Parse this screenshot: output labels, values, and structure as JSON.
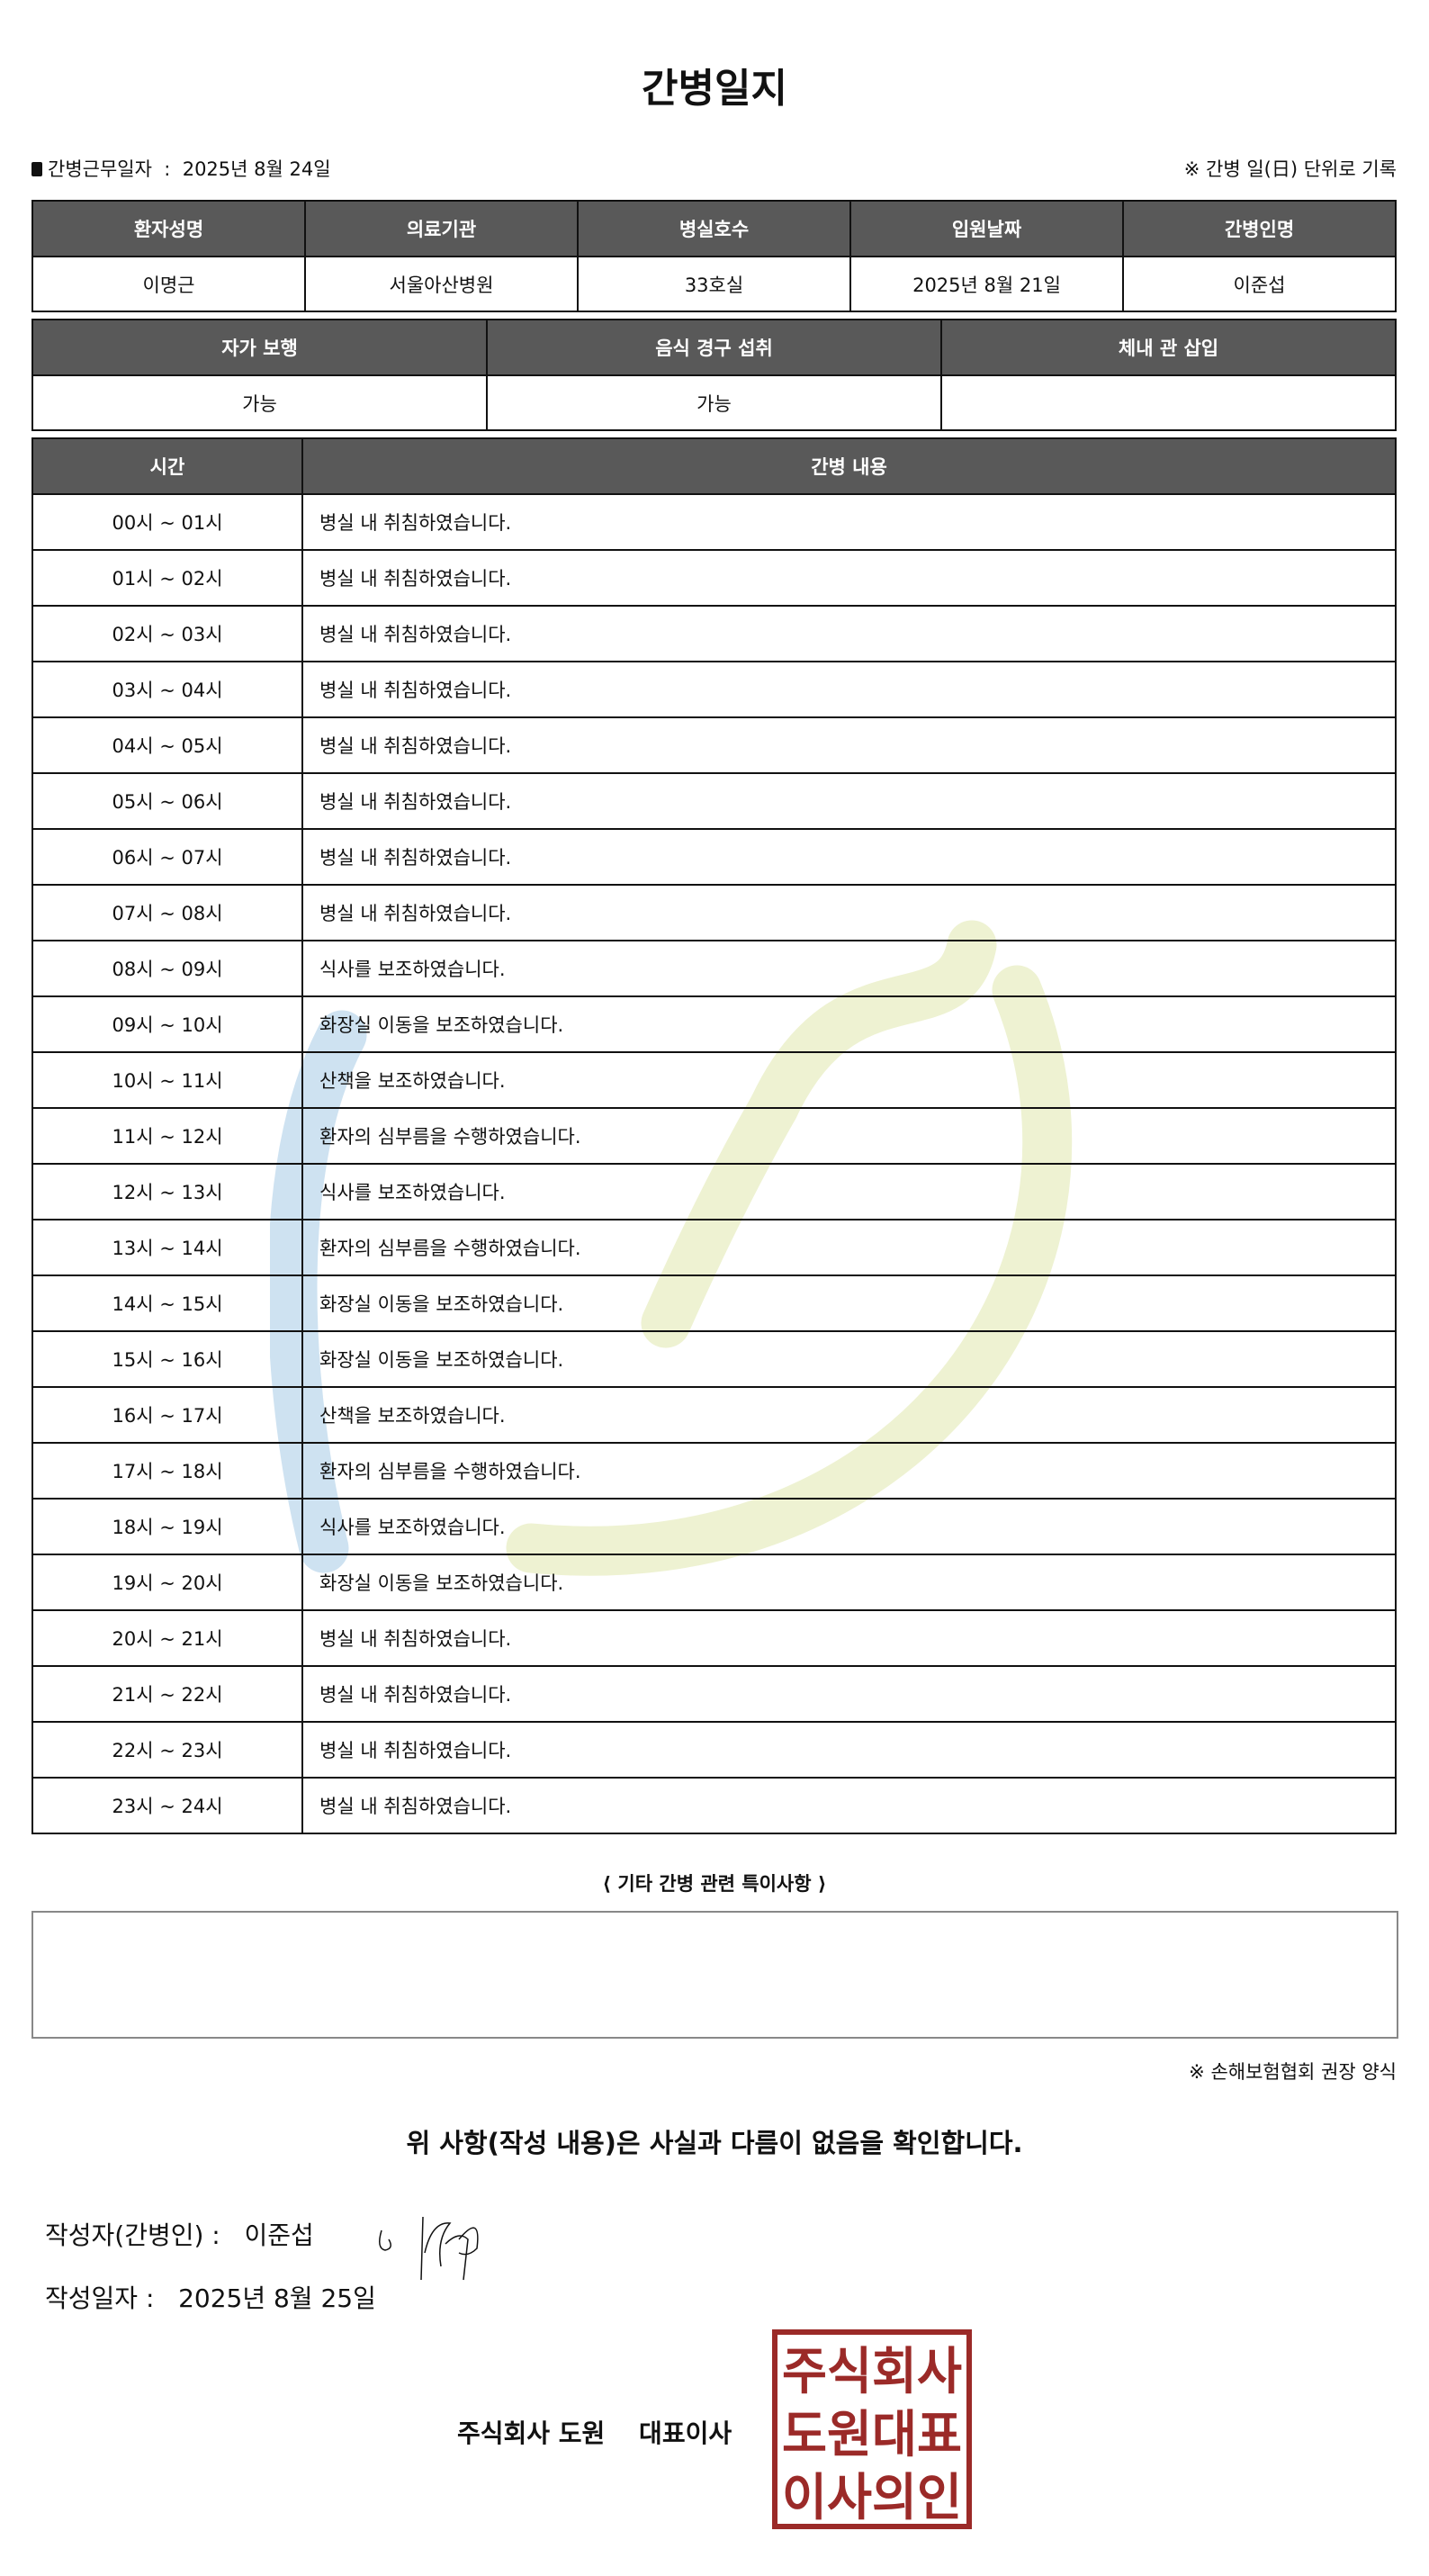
{
  "title": "간병일지",
  "info": {
    "work_date_label": "간병근무일자",
    "work_date": "2025년 8월 24일",
    "note": "※ 간병 일(日) 단위로 기록"
  },
  "patient_table": {
    "headers": [
      "환자성명",
      "의료기관",
      "병실호수",
      "입원날짜",
      "간병인명"
    ],
    "values": [
      "이명근",
      "서울아산병원",
      "33호실",
      "2025년 8월 21일",
      "이준섭"
    ]
  },
  "status_table": {
    "headers": [
      "자가 보행",
      "음식 경구 섭취",
      "체내 관 삽입"
    ],
    "values": [
      "가능",
      "가능",
      ""
    ]
  },
  "care_table": {
    "headers": [
      "시간",
      "간병 내용"
    ],
    "rows": [
      [
        "00시 ~ 01시",
        "병실 내 취침하였습니다."
      ],
      [
        "01시 ~ 02시",
        "병실 내 취침하였습니다."
      ],
      [
        "02시 ~ 03시",
        "병실 내 취침하였습니다."
      ],
      [
        "03시 ~ 04시",
        "병실 내 취침하였습니다."
      ],
      [
        "04시 ~ 05시",
        "병실 내 취침하였습니다."
      ],
      [
        "05시 ~ 06시",
        "병실 내 취침하였습니다."
      ],
      [
        "06시 ~ 07시",
        "병실 내 취침하였습니다."
      ],
      [
        "07시 ~ 08시",
        "병실 내 취침하였습니다."
      ],
      [
        "08시 ~ 09시",
        "식사를 보조하였습니다."
      ],
      [
        "09시 ~ 10시",
        "화장실 이동을 보조하였습니다."
      ],
      [
        "10시 ~ 11시",
        "산책을 보조하였습니다."
      ],
      [
        "11시 ~ 12시",
        "환자의 심부름을 수행하였습니다."
      ],
      [
        "12시 ~ 13시",
        "식사를 보조하였습니다."
      ],
      [
        "13시 ~ 14시",
        "환자의 심부름을 수행하였습니다."
      ],
      [
        "14시 ~ 15시",
        "화장실 이동을 보조하였습니다."
      ],
      [
        "15시 ~ 16시",
        "화장실 이동을 보조하였습니다."
      ],
      [
        "16시 ~ 17시",
        "산책을 보조하였습니다."
      ],
      [
        "17시 ~ 18시",
        "환자의 심부름을 수행하였습니다."
      ],
      [
        "18시 ~ 19시",
        "식사를 보조하였습니다."
      ],
      [
        "19시 ~ 20시",
        "화장실 이동을 보조하였습니다."
      ],
      [
        "20시 ~ 21시",
        "병실 내 취침하였습니다."
      ],
      [
        "21시 ~ 22시",
        "병실 내 취침하였습니다."
      ],
      [
        "22시 ~ 23시",
        "병실 내 취침하였습니다."
      ],
      [
        "23시 ~ 24시",
        "병실 내 취침하였습니다."
      ]
    ]
  },
  "special_notes": {
    "label": "⟨ 기타 간병 관련 특이사항 ⟩",
    "value": ""
  },
  "source_note": "※ 손해보험협회 권장 양식",
  "confirm": "위 사항(작성 내용)은 사실과 다름이 없음을 확인합니다.",
  "writer": {
    "label": "작성자(간병인) :",
    "name": "이준섭"
  },
  "written_date": {
    "label": "작성일자 :",
    "value": "2025년 8월 25일"
  },
  "company": "주식회사 도원　 대표이사",
  "stamp_text": [
    "주식회사",
    "도원대표",
    "이사의인"
  ],
  "colors": {
    "header_bg": "#595959",
    "stamp": "#9b2a28",
    "watermark_blue": "#c9dff0",
    "watermark_green": "#eef2d2"
  }
}
